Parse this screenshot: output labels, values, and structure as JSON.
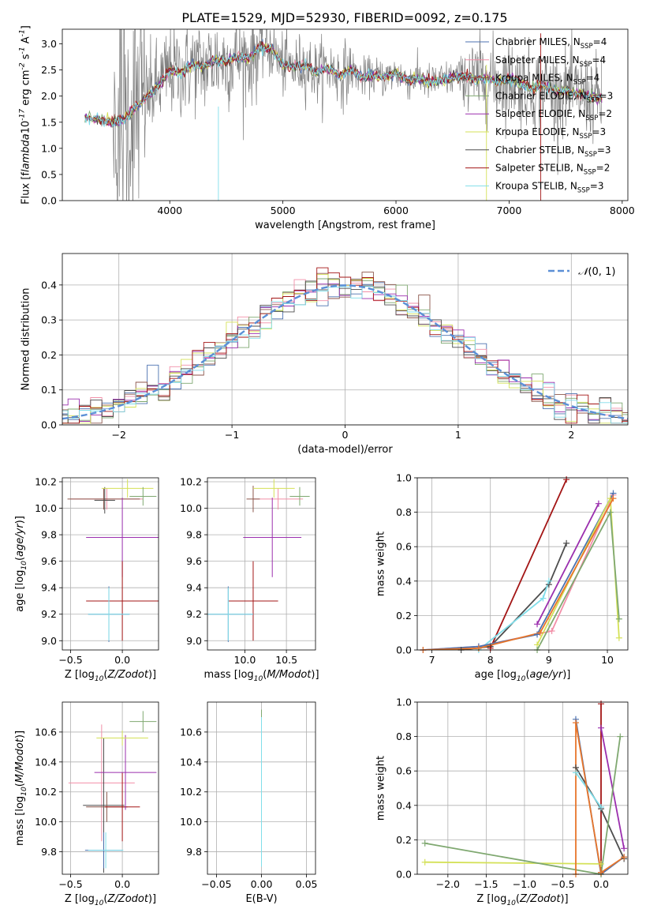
{
  "figure": {
    "title": "PLATE=1529, MJD=52930, FIBERID=0092, z=0.175"
  },
  "colors": {
    "data": "#808080",
    "models": [
      "#4c72b0",
      "#f28fa8",
      "#8c564b",
      "#7fa870",
      "#9b2fae",
      "#d4e157",
      "#4d4d4d",
      "#a31515",
      "#80deea"
    ],
    "gaussian": "#5b8fd6",
    "orange": "#e8762b"
  },
  "chart_data": [
    {
      "id": "spectrum",
      "type": "line",
      "xlabel": "wavelength [Angstrom, rest frame]",
      "ylabel": "Flux [f$_\\lambda$10$^{-17}$ erg cm$^{-2}$ s$^{-1}$ A$^{-1}$]",
      "xlim": [
        3050,
        8050
      ],
      "ylim": [
        0,
        3.28
      ],
      "xticks": [
        4000,
        5000,
        6000,
        7000,
        8000
      ],
      "yticks": [
        0.0,
        0.5,
        1.0,
        1.5,
        2.0,
        2.5,
        3.0
      ],
      "ytick_labels": [
        "0.0",
        "0.5",
        "1.0",
        "1.5",
        "2.0",
        "2.5",
        "3.0"
      ],
      "grid": false,
      "legend_position": "top-right",
      "legend": [
        {
          "label": "Chabrier MILES, N",
          "sub": "SSP",
          "tail": "=4"
        },
        {
          "label": "Salpeter MILES, N",
          "sub": "SSP",
          "tail": "=4"
        },
        {
          "label": "Kroupa MILES, N",
          "sub": "SSP",
          "tail": "=4"
        },
        {
          "label": "Chabrier ELODIE, N",
          "sub": "SSP",
          "tail": "=3"
        },
        {
          "label": "Salpeter ELODIE, N",
          "sub": "SSP",
          "tail": "=2"
        },
        {
          "label": "Kroupa ELODIE, N",
          "sub": "SSP",
          "tail": "=3"
        },
        {
          "label": "Chabrier STELIB, N",
          "sub": "SSP",
          "tail": "=3"
        },
        {
          "label": "Salpeter STELIB, N",
          "sub": "SSP",
          "tail": "=2"
        },
        {
          "label": "Kroupa STELIB, N",
          "sub": "SSP",
          "tail": "=3"
        }
      ],
      "continuum": {
        "x": [
          3250,
          3400,
          3500,
          3600,
          3700,
          3800,
          3900,
          4000,
          4100,
          4200,
          4300,
          4400,
          4500,
          4600,
          4700,
          4800,
          4900,
          5000,
          5100,
          5200,
          5300,
          5400,
          5500,
          5600,
          5700,
          5800,
          5900,
          6000,
          6100,
          6200,
          6300,
          6400,
          6500,
          6600,
          6700,
          6800,
          6900,
          7000,
          7100,
          7200,
          7300,
          7400,
          7500,
          7600,
          7700,
          7800
        ],
        "y": [
          1.6,
          1.55,
          1.5,
          1.55,
          1.8,
          2.0,
          2.2,
          2.5,
          2.45,
          2.6,
          2.55,
          2.7,
          2.65,
          2.75,
          2.7,
          2.95,
          2.9,
          2.6,
          2.55,
          2.6,
          2.45,
          2.55,
          2.4,
          2.5,
          2.35,
          2.4,
          2.35,
          2.45,
          2.3,
          2.35,
          2.25,
          2.3,
          2.35,
          2.4,
          2.3,
          2.35,
          2.25,
          2.35,
          2.25,
          2.15,
          2.2,
          2.1,
          2.1,
          2.05,
          2.0,
          1.95
        ]
      }
    },
    {
      "id": "residual-histogram",
      "type": "step",
      "xlabel": "(data-model)/error",
      "ylabel": "Normed distribution",
      "xlim": [
        -2.5,
        2.5
      ],
      "ylim": [
        0,
        0.49
      ],
      "xticks": [
        -2,
        -1,
        0,
        1,
        2
      ],
      "xtick_labels": [
        "−2",
        "−1",
        "0",
        "1",
        "2"
      ],
      "yticks": [
        0.0,
        0.1,
        0.2,
        0.3,
        0.4
      ],
      "ytick_labels": [
        "0.0",
        "0.1",
        "0.2",
        "0.3",
        "0.4"
      ],
      "grid": true,
      "legend_position": "top-right",
      "legend": [
        "$\\mathcal{N}(0,1)$"
      ],
      "gaussian": {
        "mean": 0,
        "sigma": 1
      }
    },
    {
      "id": "age-vs-z",
      "type": "errorbar",
      "xlabel": "Z [log$_{10}$($Z/Z_\\odot$)]",
      "ylabel": "age  [log$_{10}$($age/yr$)]",
      "xlim": [
        -0.58,
        0.35
      ],
      "ylim": [
        8.93,
        10.23
      ],
      "xticks": [
        -0.5,
        0.0
      ],
      "xtick_labels": [
        "−0.5",
        "0.0"
      ],
      "yticks": [
        9.0,
        9.2,
        9.4,
        9.6,
        9.8,
        10.0,
        10.2
      ],
      "ytick_labels": [
        "9.0",
        "9.2",
        "9.4",
        "9.6",
        "9.8",
        "10.0",
        "10.2"
      ],
      "grid": true,
      "points": [
        {
          "x": -0.15,
          "y": 10.07,
          "xerr": 0.35,
          "yerr": 0.08,
          "c": 1
        },
        {
          "x": -0.18,
          "y": 10.07,
          "xerr": 0.35,
          "yerr": 0.08,
          "c": 2
        },
        {
          "x": -0.17,
          "y": 10.06,
          "xerr": 0.1,
          "yerr": 0.1,
          "c": 6
        },
        {
          "x": 0.05,
          "y": 10.15,
          "xerr": 0.25,
          "yerr": 0.07,
          "c": 5
        },
        {
          "x": 0.2,
          "y": 10.09,
          "xerr": 0.13,
          "yerr": 0.07,
          "c": 3
        },
        {
          "x": 0.0,
          "y": 9.78,
          "xerr": 0.35,
          "yerr": 0.3,
          "c": 4
        },
        {
          "x": 0.0,
          "y": 9.3,
          "xerr": 0.35,
          "yerr": 0.3,
          "c": 7
        },
        {
          "x": -0.13,
          "y": 9.2,
          "xerr": 0.2,
          "yerr": 0.21,
          "c": 0
        },
        {
          "x": -0.13,
          "y": 9.2,
          "xerr": 0.2,
          "yerr": 0.2,
          "c": 8
        }
      ]
    },
    {
      "id": "age-vs-mass",
      "type": "errorbar",
      "xlabel": "mass [log$_{10}$($M/M_\\odot$)]",
      "ylabel": "",
      "xlim": [
        9.55,
        10.85
      ],
      "ylim": [
        8.93,
        10.23
      ],
      "xticks": [
        10.0,
        10.5
      ],
      "xtick_labels": [
        "10.0",
        "10.5"
      ],
      "yticks": [
        9.0,
        9.2,
        9.4,
        9.6,
        9.8,
        10.0,
        10.2
      ],
      "ytick_labels": [
        "9.0",
        "9.2",
        "9.4",
        "9.6",
        "9.8",
        "10.0",
        "10.2"
      ],
      "grid": true,
      "points": [
        {
          "x": 10.4,
          "y": 10.07,
          "xerr": 0.3,
          "yerr": 0.08,
          "c": 1
        },
        {
          "x": 10.1,
          "y": 10.07,
          "xerr": 0.08,
          "yerr": 0.1,
          "c": 2
        },
        {
          "x": 10.35,
          "y": 10.15,
          "xerr": 0.25,
          "yerr": 0.07,
          "c": 5
        },
        {
          "x": 10.66,
          "y": 10.09,
          "xerr": 0.12,
          "yerr": 0.07,
          "c": 3
        },
        {
          "x": 10.33,
          "y": 9.78,
          "xerr": 0.35,
          "yerr": 0.3,
          "c": 4
        },
        {
          "x": 10.1,
          "y": 9.3,
          "xerr": 0.3,
          "yerr": 0.3,
          "c": 7
        },
        {
          "x": 9.8,
          "y": 9.2,
          "xerr": 0.3,
          "yerr": 0.21,
          "c": 0
        },
        {
          "x": 9.8,
          "y": 9.2,
          "xerr": 0.3,
          "yerr": 0.2,
          "c": 8
        }
      ]
    },
    {
      "id": "weight-vs-age",
      "type": "line",
      "xlabel": "age  [log$_{10}$($age/yr$)]",
      "ylabel": "mass weight",
      "xlim": [
        6.75,
        10.35
      ],
      "ylim": [
        0,
        1.0
      ],
      "xticks": [
        7,
        8,
        9,
        10
      ],
      "xtick_labels": [
        "7",
        "8",
        "9",
        "10"
      ],
      "yticks": [
        0.0,
        0.2,
        0.4,
        0.6,
        0.8,
        1.0
      ],
      "ytick_labels": [
        "0.0",
        "0.2",
        "0.4",
        "0.6",
        "0.8",
        "1.0"
      ],
      "grid": true,
      "series": [
        {
          "c": 6,
          "x": [
            7.5,
            8.0,
            9.0,
            9.3
          ],
          "y": [
            0.0,
            0.02,
            0.38,
            0.62
          ]
        },
        {
          "c": 7,
          "x": [
            8.0,
            9.3
          ],
          "y": [
            0.01,
            0.99
          ]
        },
        {
          "c": 8,
          "x": [
            7.8,
            8.9,
            9.0
          ],
          "y": [
            0.0,
            0.3,
            0.4
          ]
        },
        {
          "c": 4,
          "x": [
            8.8,
            9.85
          ],
          "y": [
            0.15,
            0.85
          ]
        },
        {
          "c": 1,
          "x": [
            6.85,
            7.8,
            9.05,
            10.1
          ],
          "y": [
            0.0,
            0.02,
            0.11,
            0.9
          ]
        },
        {
          "c": 0,
          "x": [
            6.85,
            7.8,
            8.8,
            10.1
          ],
          "y": [
            0.0,
            0.02,
            0.09,
            0.91
          ]
        },
        {
          "c": 5,
          "x": [
            8.8,
            10.05,
            10.2
          ],
          "y": [
            0.03,
            0.88,
            0.07
          ]
        },
        {
          "c": 3,
          "x": [
            8.8,
            10.05,
            10.2
          ],
          "y": [
            0.0,
            0.8,
            0.18
          ]
        },
        {
          "c": 9,
          "x": [
            6.85,
            7.8,
            8.85,
            10.1
          ],
          "y": [
            0.0,
            0.01,
            0.1,
            0.88
          ]
        }
      ]
    },
    {
      "id": "mass-vs-z",
      "type": "errorbar",
      "xlabel": "Z [log$_{10}$($Z/Z_\\odot$)]",
      "ylabel": "mass [log$_{10}$($M/M_\\odot$)]",
      "xlim": [
        -0.58,
        0.35
      ],
      "ylim": [
        9.65,
        10.8
      ],
      "xticks": [
        -0.5,
        0.0
      ],
      "xtick_labels": [
        "−0.5",
        "0.0"
      ],
      "yticks": [
        9.8,
        10.0,
        10.2,
        10.4,
        10.6
      ],
      "ytick_labels": [
        "9.8",
        "10.0",
        "10.2",
        "10.4",
        "10.6"
      ],
      "grid": true,
      "points": [
        {
          "x": -0.2,
          "y": 10.26,
          "xerr": 0.32,
          "yerr": 0.39,
          "c": 1
        },
        {
          "x": -0.18,
          "y": 10.11,
          "xerr": 0.2,
          "yerr": 0.45,
          "c": 6
        },
        {
          "x": -0.15,
          "y": 10.1,
          "xerr": 0.2,
          "yerr": 0.1,
          "c": 2
        },
        {
          "x": 0.0,
          "y": 10.1,
          "xerr": 0.17,
          "yerr": 0.23,
          "c": 7
        },
        {
          "x": 0.03,
          "y": 10.33,
          "xerr": 0.3,
          "yerr": 0.25,
          "c": 4
        },
        {
          "x": 0.0,
          "y": 10.56,
          "xerr": 0.25,
          "yerr": 0.05,
          "c": 5
        },
        {
          "x": 0.2,
          "y": 10.67,
          "xerr": 0.13,
          "yerr": 0.07,
          "c": 3
        },
        {
          "x": -0.18,
          "y": 9.81,
          "xerr": 0.18,
          "yerr": 0.12,
          "c": 0
        },
        {
          "x": -0.16,
          "y": 9.81,
          "xerr": 0.17,
          "yerr": 0.12,
          "c": 8
        }
      ]
    },
    {
      "id": "mass-vs-ebv",
      "type": "errorbar",
      "xlabel": "E(B-V)",
      "ylabel": "",
      "xlim": [
        -0.06,
        0.06
      ],
      "ylim": [
        9.65,
        10.8
      ],
      "xticks": [
        -0.05,
        0.0,
        0.05
      ],
      "xtick_labels": [
        "−0.05",
        "0.00",
        "0.05"
      ],
      "yticks": [
        9.8,
        10.0,
        10.2,
        10.4,
        10.6
      ],
      "ytick_labels": [
        "9.8",
        "10.0",
        "10.2",
        "10.4",
        "10.6"
      ],
      "grid": true,
      "points": [
        {
          "x": 0.0,
          "y": 10.45,
          "xerr": 0,
          "yerr": 0.3,
          "c": 3
        },
        {
          "x": 0.0,
          "y": 10.2,
          "xerr": 0,
          "yerr": 0.5,
          "c": 8
        }
      ]
    },
    {
      "id": "weight-vs-z",
      "type": "line",
      "xlabel": "Z [log$_{10}$($Z/Z_\\odot$)]",
      "ylabel": "mass weight",
      "xlim": [
        -2.4,
        0.35
      ],
      "ylim": [
        0,
        1.0
      ],
      "xticks": [
        -2.0,
        -1.5,
        -1.0,
        -0.5,
        0.0
      ],
      "xtick_labels": [
        "−2.0",
        "−1.5",
        "−1.0",
        "−0.5",
        "0.0"
      ],
      "yticks": [
        0.0,
        0.2,
        0.4,
        0.6,
        0.8,
        1.0
      ],
      "ytick_labels": [
        "0.0",
        "0.2",
        "0.4",
        "0.6",
        "0.8",
        "1.0"
      ],
      "grid": true,
      "series": [
        {
          "c": 7,
          "x": [
            0.0,
            0.0
          ],
          "y": [
            0.01,
            0.99
          ]
        },
        {
          "c": 6,
          "x": [
            -0.33,
            0.0,
            0.3
          ],
          "y": [
            0.62,
            0.38,
            0.09
          ]
        },
        {
          "c": 0,
          "x": [
            -0.33,
            0.0,
            0.3
          ],
          "y": [
            0.9,
            0.0,
            0.1
          ]
        },
        {
          "c": 8,
          "x": [
            -0.33,
            0.0
          ],
          "y": [
            0.59,
            0.39
          ]
        },
        {
          "c": 4,
          "x": [
            0.0,
            0.3
          ],
          "y": [
            0.85,
            0.15
          ]
        },
        {
          "c": 5,
          "x": [
            -2.3,
            0.0
          ],
          "y": [
            0.07,
            0.06
          ]
        },
        {
          "c": 3,
          "x": [
            -2.3,
            0.0,
            0.25
          ],
          "y": [
            0.18,
            0.0,
            0.8
          ]
        },
        {
          "c": 9,
          "x": [
            -0.33,
            -0.33,
            0.0,
            0.3
          ],
          "y": [
            0.0,
            0.88,
            0.01,
            0.1
          ]
        }
      ]
    }
  ]
}
